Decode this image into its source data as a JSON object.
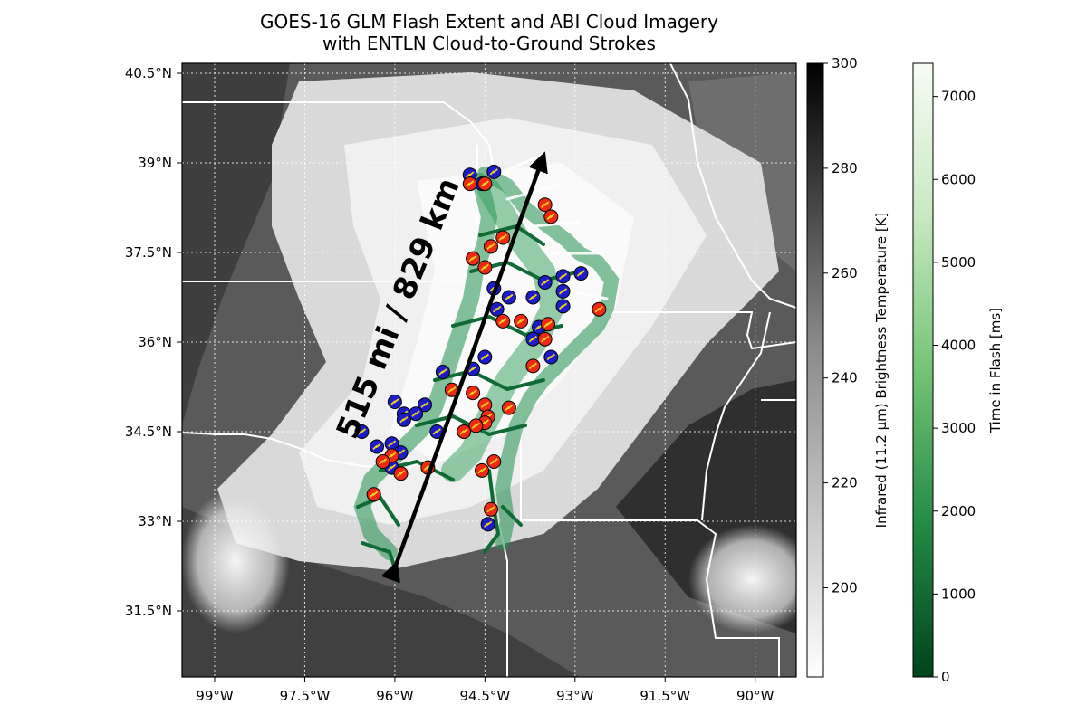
{
  "title": {
    "line1": "GOES-16 GLM Flash Extent and ABI Cloud Imagery",
    "line2": "with ENTLN Cloud-to-Ground Strokes"
  },
  "map": {
    "lat_labels": [
      "40.5°N",
      "39°N",
      "37.5°N",
      "36°N",
      "34.5°N",
      "33°N",
      "31.5°N"
    ],
    "lon_labels": [
      "99°W",
      "97.5°W",
      "96°W",
      "94.5°W",
      "93°W",
      "91.5°W",
      "90°W"
    ],
    "annotation": "515 mi / 829 km",
    "colors": {
      "positive_stroke": "#ee2a12",
      "negative_stroke": "#1c1cc8",
      "flash_extent": "#1a8a4a",
      "border": "#ffffff"
    },
    "positive_strokes": [
      [
        -94.75,
        38.65
      ],
      [
        -94.5,
        38.65
      ],
      [
        -93.5,
        38.3
      ],
      [
        -93.4,
        38.1
      ],
      [
        -94.2,
        37.75
      ],
      [
        -94.4,
        37.6
      ],
      [
        -94.7,
        37.4
      ],
      [
        -94.5,
        37.25
      ],
      [
        -92.6,
        36.55
      ],
      [
        -94.2,
        36.35
      ],
      [
        -93.9,
        36.35
      ],
      [
        -93.45,
        36.3
      ],
      [
        -93.5,
        36.05
      ],
      [
        -93.7,
        35.6
      ],
      [
        -95.05,
        35.2
      ],
      [
        -94.7,
        35.15
      ],
      [
        -94.5,
        34.95
      ],
      [
        -94.1,
        34.9
      ],
      [
        -94.45,
        34.75
      ],
      [
        -94.5,
        34.65
      ],
      [
        -94.65,
        34.6
      ],
      [
        -94.85,
        34.5
      ],
      [
        -96.05,
        34.1
      ],
      [
        -96.2,
        34.0
      ],
      [
        -95.45,
        33.9
      ],
      [
        -95.9,
        33.8
      ],
      [
        -94.35,
        34.0
      ],
      [
        -94.55,
        33.85
      ],
      [
        -96.35,
        33.45
      ],
      [
        -94.4,
        33.2
      ]
    ],
    "negative_strokes": [
      [
        -94.75,
        38.8
      ],
      [
        -94.35,
        38.85
      ],
      [
        -94.55,
        38.65
      ],
      [
        -92.9,
        37.15
      ],
      [
        -93.2,
        37.1
      ],
      [
        -93.5,
        37.0
      ],
      [
        -93.2,
        36.85
      ],
      [
        -94.35,
        36.9
      ],
      [
        -94.1,
        36.75
      ],
      [
        -93.7,
        36.75
      ],
      [
        -93.2,
        36.6
      ],
      [
        -94.3,
        36.55
      ],
      [
        -93.6,
        36.25
      ],
      [
        -93.7,
        36.05
      ],
      [
        -93.4,
        35.75
      ],
      [
        -94.5,
        35.75
      ],
      [
        -94.7,
        35.55
      ],
      [
        -95.2,
        35.5
      ],
      [
        -96.0,
        35.0
      ],
      [
        -95.5,
        34.95
      ],
      [
        -95.85,
        34.8
      ],
      [
        -95.65,
        34.8
      ],
      [
        -95.85,
        34.7
      ],
      [
        -95.3,
        34.5
      ],
      [
        -96.55,
        34.5
      ],
      [
        -96.3,
        34.25
      ],
      [
        -96.05,
        34.3
      ],
      [
        -95.9,
        34.15
      ],
      [
        -96.05,
        33.9
      ],
      [
        -94.45,
        32.95
      ]
    ]
  },
  "colorbar_ir": {
    "label": "Infrared (11.2 µm) Brightness Temperature [K]",
    "ticks": [
      "300",
      "280",
      "260",
      "240",
      "220",
      "200"
    ],
    "range": [
      183,
      300
    ]
  },
  "colorbar_flash": {
    "label": "Time in Flash [ms]",
    "ticks": [
      "7000",
      "6000",
      "5000",
      "4000",
      "3000",
      "2000",
      "1000",
      "0"
    ],
    "range": [
      0,
      7400
    ]
  }
}
